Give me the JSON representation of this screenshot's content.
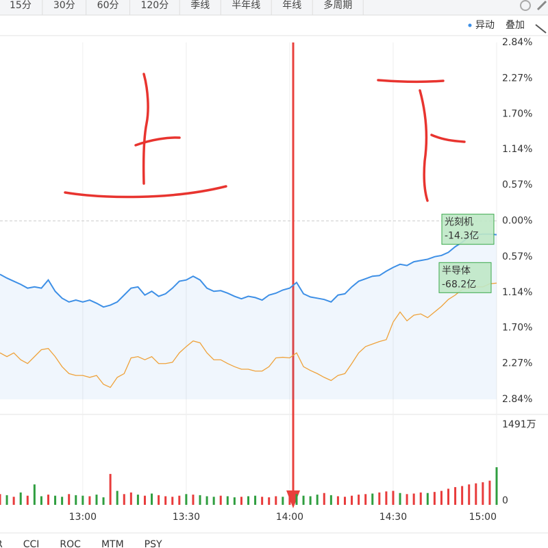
{
  "toolbar": [
    "15分",
    "30分",
    "60分",
    "120分",
    "季线",
    "半年线",
    "年线",
    "多周期"
  ],
  "controls": [
    "异动",
    "叠加"
  ],
  "indicators": [
    "R",
    "CCI",
    "ROC",
    "MTM",
    "PSY"
  ],
  "chart_data": [
    {
      "type": "line",
      "categories": [
        null,
        null,
        null,
        null,
        null,
        null,
        null,
        null,
        null,
        null,
        null,
        null,
        "13:00",
        null,
        null,
        null,
        null,
        null,
        null,
        null,
        null,
        null,
        null,
        null,
        null,
        null,
        null,
        "13:30",
        null,
        null,
        null,
        null,
        null,
        null,
        null,
        null,
        null,
        null,
        null,
        null,
        null,
        null,
        "14:00",
        null,
        null,
        null,
        null,
        null,
        null,
        null,
        null,
        null,
        null,
        null,
        null,
        null,
        null,
        "14:30",
        null,
        null,
        null,
        null,
        null,
        null,
        null,
        null,
        null,
        null,
        null,
        null,
        null,
        null,
        "15:00"
      ],
      "ylim": [
        -2.84,
        2.84
      ],
      "yticks": [
        {
          "value": 2.84,
          "label": "2.84%"
        },
        {
          "value": 2.27,
          "label": "2.27%"
        },
        {
          "value": 1.7,
          "label": "1.70%"
        },
        {
          "value": 1.14,
          "label": "1.14%"
        },
        {
          "value": 0.57,
          "label": "0.57%"
        },
        {
          "value": 0,
          "label": "0.00%"
        },
        {
          "value": -0.57,
          "label": "0.57%"
        },
        {
          "value": -1.14,
          "label": "1.14%"
        },
        {
          "value": -1.7,
          "label": "1.70%"
        },
        {
          "value": -2.27,
          "label": "2.27%"
        },
        {
          "value": -2.84,
          "label": "2.84%"
        }
      ],
      "up_color": "#e83b3b",
      "down_color": "#2f9e3f",
      "flat_color": "#666666",
      "grid": true,
      "series": [
        {
          "name": "光刻机",
          "note": "-14.3亿",
          "color": "#3d8fe6",
          "area": true,
          "values": [
            -0.85,
            -0.91,
            -0.96,
            -1.01,
            -1.07,
            -1.05,
            -1.07,
            -0.94,
            -1.12,
            -1.23,
            -1.29,
            -1.26,
            -1.29,
            -1.26,
            -1.31,
            -1.37,
            -1.34,
            -1.29,
            -1.18,
            -1.07,
            -1.05,
            -1.18,
            -1.12,
            -1.2,
            -1.16,
            -1.07,
            -0.96,
            -0.94,
            -0.88,
            -0.94,
            -1.07,
            -1.12,
            -1.11,
            -1.15,
            -1.2,
            -1.24,
            -1.2,
            -1.22,
            -1.26,
            -1.18,
            -1.15,
            -1.1,
            -1.07,
            -0.98,
            -1.16,
            -1.21,
            -1.23,
            -1.25,
            -1.29,
            -1.18,
            -1.16,
            -1.05,
            -0.96,
            -0.92,
            -0.88,
            -0.87,
            -0.8,
            -0.74,
            -0.69,
            -0.71,
            -0.65,
            -0.63,
            -0.61,
            -0.57,
            -0.55,
            -0.5,
            -0.41,
            -0.34,
            -0.25,
            -0.22,
            -0.21,
            -0.21,
            -0.22
          ]
        },
        {
          "name": "半导体",
          "note": "-68.2亿",
          "color": "#efa23a",
          "area": false,
          "values": [
            -2.1,
            -2.16,
            -2.1,
            -2.21,
            -2.27,
            -2.16,
            -2.05,
            -2.03,
            -2.16,
            -2.32,
            -2.43,
            -2.46,
            -2.46,
            -2.49,
            -2.46,
            -2.6,
            -2.65,
            -2.49,
            -2.43,
            -2.18,
            -2.16,
            -2.21,
            -2.16,
            -2.27,
            -2.27,
            -2.25,
            -2.1,
            -2.0,
            -1.91,
            -1.94,
            -2.1,
            -2.21,
            -2.21,
            -2.27,
            -2.32,
            -2.36,
            -2.36,
            -2.39,
            -2.39,
            -2.32,
            -2.18,
            -2.17,
            -2.18,
            -2.1,
            -2.32,
            -2.38,
            -2.43,
            -2.49,
            -2.54,
            -2.46,
            -2.43,
            -2.27,
            -2.1,
            -2.0,
            -1.96,
            -1.92,
            -1.89,
            -1.61,
            -1.45,
            -1.59,
            -1.5,
            -1.48,
            -1.54,
            -1.45,
            -1.36,
            -1.25,
            -1.18,
            -1.09,
            -1.07,
            -1.05,
            -1.05,
            -1.0,
            -0.99
          ]
        }
      ]
    },
    {
      "type": "bar",
      "ylim": [
        0,
        1491
      ],
      "yticks": [
        {
          "value": 1491,
          "label": "1491万"
        },
        0
      ],
      "values": [
        200,
        180,
        150,
        230,
        170,
        380,
        160,
        190,
        170,
        150,
        200,
        180,
        170,
        160,
        190,
        140,
        575,
        260,
        200,
        230,
        190,
        170,
        210,
        180,
        160,
        150,
        170,
        200,
        190,
        180,
        160,
        150,
        170,
        160,
        140,
        150,
        160,
        170,
        150,
        140,
        160,
        150,
        180,
        200,
        170,
        160,
        190,
        220,
        180,
        160,
        150,
        170,
        190,
        200,
        210,
        230,
        250,
        260,
        220,
        200,
        210,
        230,
        220,
        240,
        260,
        300,
        330,
        350,
        380,
        400,
        420,
        450,
        700
      ],
      "colors": [
        "#e83b3b",
        "#2f9e3f",
        "#e83b3b",
        "#2f9e3f",
        "#e83b3b",
        "#2f9e3f",
        "#2f9e3f",
        "#e83b3b",
        "#2f9e3f",
        "#2f9e3f",
        "#e83b3b",
        "#2f9e3f",
        "#2f9e3f",
        "#e83b3b",
        "#2f9e3f",
        "#2f9e3f",
        "#e83b3b",
        "#2f9e3f",
        "#e83b3b",
        "#e83b3b",
        "#2f9e3f",
        "#e83b3b",
        "#2f9e3f",
        "#e83b3b",
        "#e83b3b",
        "#e83b3b",
        "#e83b3b",
        "#2f9e3f",
        "#e83b3b",
        "#2f9e3f",
        "#2f9e3f",
        "#2f9e3f",
        "#e83b3b",
        "#2f9e3f",
        "#2f9e3f",
        "#e83b3b",
        "#2f9e3f",
        "#2f9e3f",
        "#e83b3b",
        "#e83b3b",
        "#e83b3b",
        "#2f9e3f",
        "#e83b3b",
        "#2f9e3f",
        "#2f9e3f",
        "#2f9e3f",
        "#2f9e3f",
        "#e83b3b",
        "#2f9e3f",
        "#e83b3b",
        "#e83b3b",
        "#e83b3b",
        "#e83b3b",
        "#e83b3b",
        "#2f9e3f",
        "#e83b3b",
        "#e83b3b",
        "#e83b3b",
        "#2f9e3f",
        "#e83b3b",
        "#e83b3b",
        "#e83b3b",
        "#2f9e3f",
        "#e83b3b",
        "#e83b3b",
        "#e83b3b",
        "#e83b3b",
        "#e83b3b",
        "#e83b3b",
        "#e83b3b",
        "#e83b3b",
        "#e83b3b",
        "#2f9e3f"
      ]
    }
  ]
}
